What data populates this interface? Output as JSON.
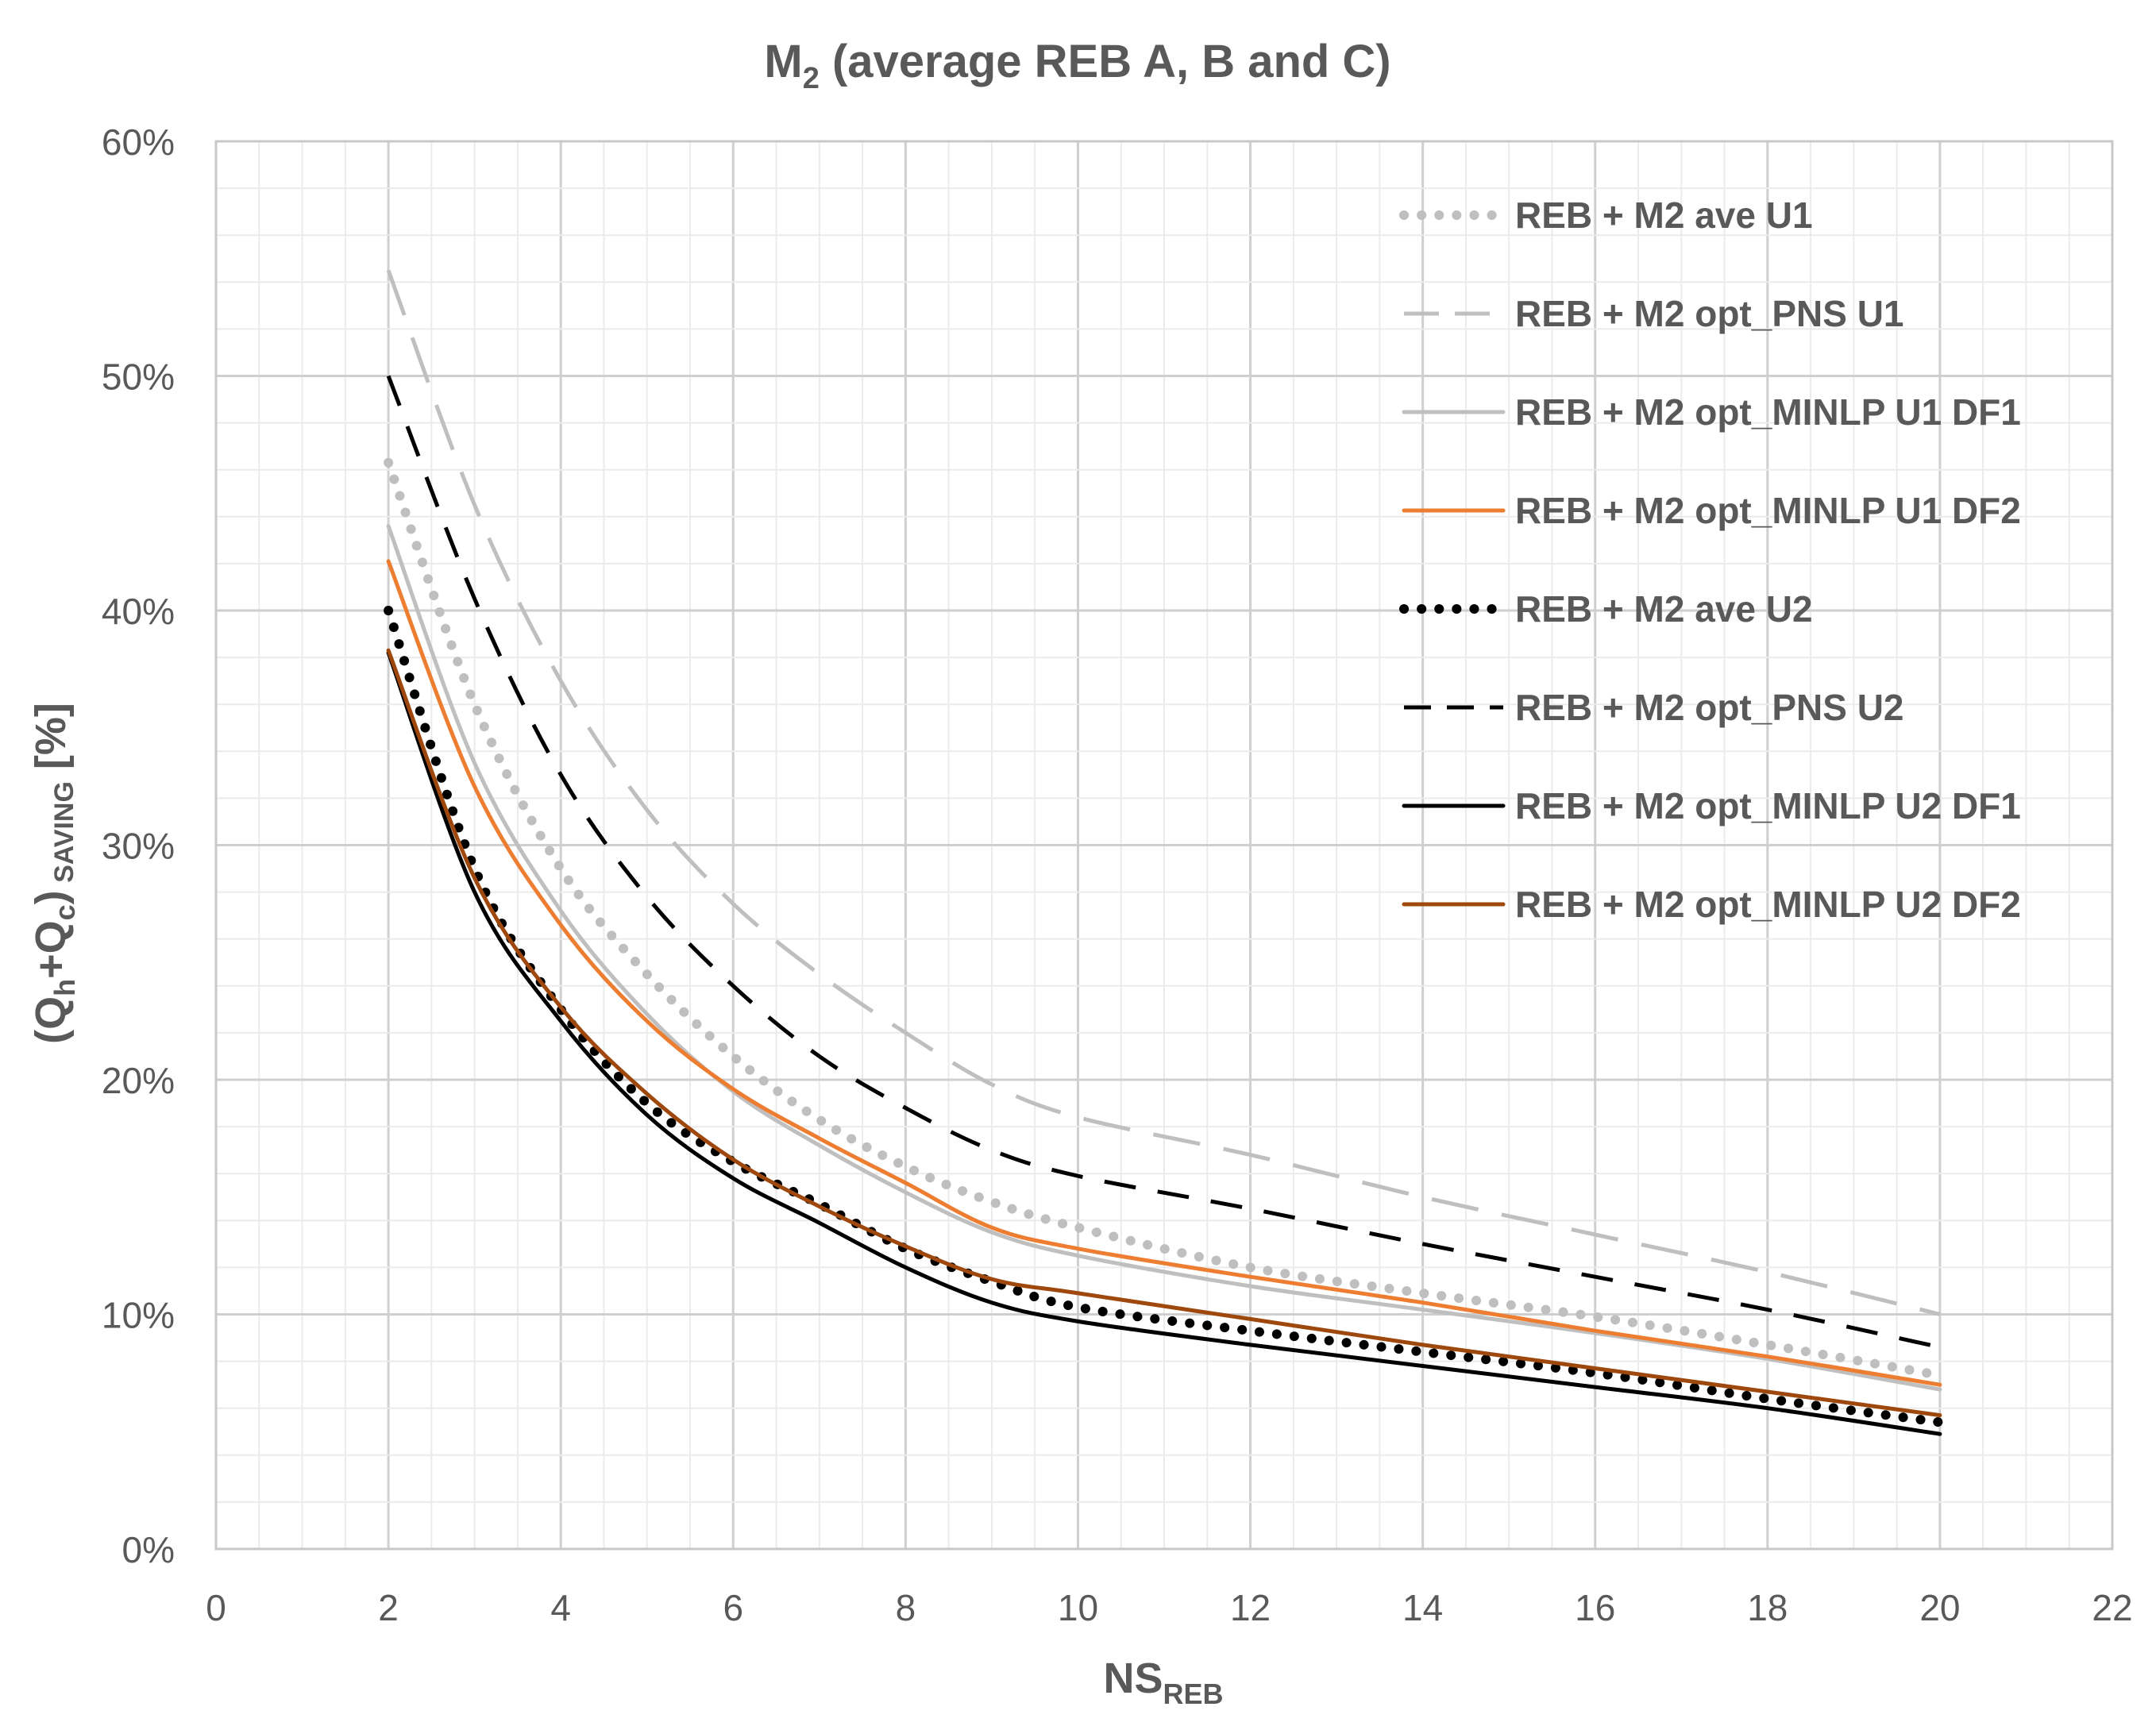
{
  "chart_data": {
    "type": "line",
    "title": {
      "main": "M",
      "sub": "2",
      "rest": " (average REB A, B and C)"
    },
    "xlabel": {
      "main": "NS",
      "sub": "REB"
    },
    "ylabel": {
      "p1": "(Q",
      "s1": "h",
      "p2": "+Q",
      "s2": "c",
      "p3": ")",
      "suffix": " SAVING",
      "tail": " [%]"
    },
    "xlim": [
      0,
      22
    ],
    "ylim": [
      0,
      60
    ],
    "xticks": [
      "0",
      "2",
      "4",
      "6",
      "8",
      "10",
      "12",
      "14",
      "16",
      "18",
      "20",
      "22"
    ],
    "yticks": [
      "0%",
      "10%",
      "20%",
      "30%",
      "40%",
      "50%",
      "60%"
    ],
    "grid": true,
    "legend_position": "top-right",
    "x": [
      2,
      3,
      4,
      5,
      6,
      7,
      8,
      9,
      10,
      12,
      14,
      16,
      18,
      20
    ],
    "series": [
      {
        "name": "REB + M2 ave U1",
        "color": "#bfbfbf",
        "style": "dotted",
        "values": [
          46.3,
          36.0,
          29.0,
          24.5,
          21.0,
          18.3,
          16.3,
          14.8,
          13.7,
          12.0,
          10.9,
          9.9,
          8.7,
          7.4
        ]
      },
      {
        "name": "REB + M2 opt_PNS U1",
        "color": "#bfbfbf",
        "style": "long-dash",
        "values": [
          54.5,
          44.5,
          37.0,
          31.5,
          27.5,
          24.5,
          22.0,
          19.8,
          18.4,
          16.8,
          15.0,
          13.4,
          11.8,
          10.0
        ]
      },
      {
        "name": "REB + M2 opt_MINLP U1 DF1",
        "color": "#bfbfbf",
        "style": "solid",
        "values": [
          43.6,
          33.5,
          27.2,
          22.8,
          19.5,
          17.2,
          15.2,
          13.5,
          12.5,
          11.2,
          10.2,
          9.2,
          8.1,
          6.8
        ]
      },
      {
        "name": "REB + M2 opt_MINLP U1 DF2",
        "color": "#ed7d31",
        "style": "solid",
        "values": [
          42.1,
          32.5,
          26.6,
          22.5,
          19.6,
          17.5,
          15.6,
          13.7,
          12.8,
          11.6,
          10.5,
          9.3,
          8.2,
          7.0
        ]
      },
      {
        "name": "REB + M2 ave U2",
        "color": "#000000",
        "style": "dotted",
        "values": [
          40.0,
          29.0,
          23.0,
          19.0,
          16.5,
          14.7,
          12.8,
          11.4,
          10.3,
          9.3,
          8.4,
          7.5,
          6.4,
          5.4
        ]
      },
      {
        "name": "REB + M2 opt_PNS U2",
        "color": "#000000",
        "style": "dash",
        "values": [
          50.0,
          40.5,
          33.0,
          27.8,
          24.0,
          21.0,
          18.8,
          17.0,
          15.9,
          14.5,
          13.0,
          11.6,
          10.2,
          8.6
        ]
      },
      {
        "name": "REB + M2 opt_MINLP U2 DF1",
        "color": "#000000",
        "style": "solid",
        "values": [
          38.2,
          28.0,
          22.5,
          18.5,
          15.8,
          13.9,
          12.0,
          10.5,
          9.7,
          8.7,
          7.8,
          6.9,
          6.0,
          4.9
        ]
      },
      {
        "name": "REB + M2 opt_MINLP U2 DF2",
        "color": "#9e480e",
        "style": "solid",
        "values": [
          38.3,
          28.6,
          23.1,
          19.4,
          16.6,
          14.6,
          12.9,
          11.5,
          10.9,
          9.8,
          8.7,
          7.7,
          6.7,
          5.7
        ]
      }
    ]
  }
}
